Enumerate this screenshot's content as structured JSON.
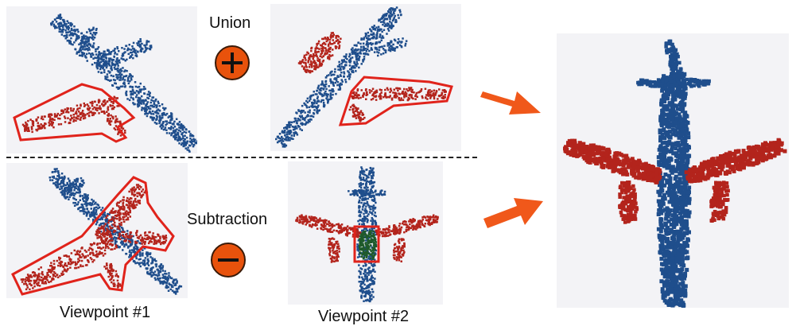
{
  "operations": {
    "union": {
      "label": "Union",
      "symbol": "+",
      "color": "#e8520c"
    },
    "subtraction": {
      "label": "Subtraction",
      "symbol": "−",
      "color": "#e8520c"
    }
  },
  "viewpoints": {
    "first": "Viewpoint #1",
    "second": "Viewpoint #2"
  },
  "colors": {
    "fuselage_points": "#1f4e8c",
    "wing_points": "#b3241c",
    "overlap_points": "#1f5a2a",
    "highlight_outline": "#e0231b",
    "arrow": "#f0581a",
    "panel_background": "#f3f3f6"
  }
}
